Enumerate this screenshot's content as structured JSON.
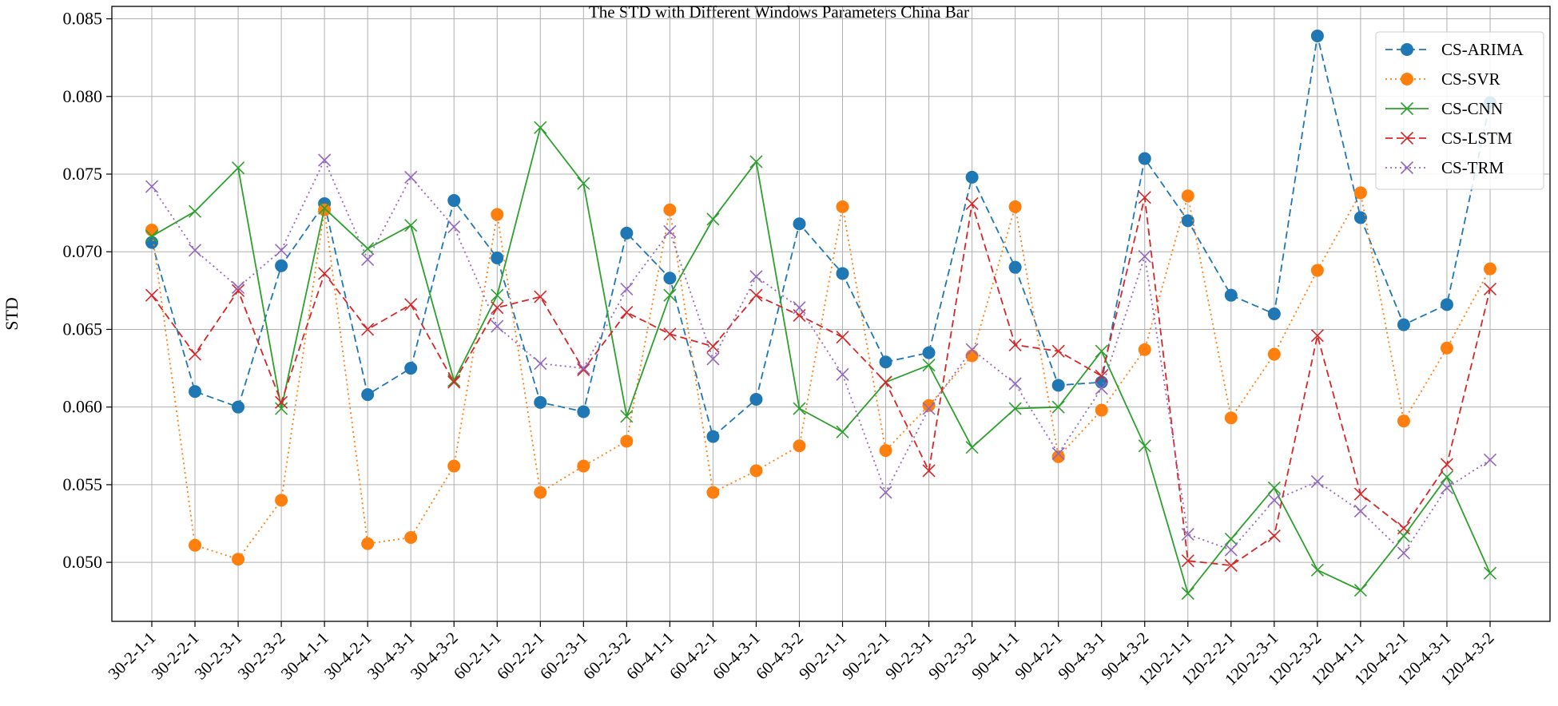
{
  "chart_data": {
    "type": "line",
    "title": "The STD with Different Windows Parameters China Bar",
    "xlabel": "",
    "ylabel": "STD",
    "ylim": [
      0.0462,
      0.0858
    ],
    "yticks": [
      0.05,
      0.055,
      0.06,
      0.065,
      0.07,
      0.075,
      0.08,
      0.085
    ],
    "ytick_labels": [
      "0.050",
      "0.055",
      "0.060",
      "0.065",
      "0.070",
      "0.075",
      "0.080",
      "0.085"
    ],
    "grid": true,
    "legend_position": "top-right",
    "categories": [
      "30-2-1-1",
      "30-2-2-1",
      "30-2-3-1",
      "30-2-3-2",
      "30-4-1-1",
      "30-4-2-1",
      "30-4-3-1",
      "30-4-3-2",
      "60-2-1-1",
      "60-2-2-1",
      "60-2-3-1",
      "60-2-3-2",
      "60-4-1-1",
      "60-4-2-1",
      "60-4-3-1",
      "60-4-3-2",
      "90-2-1-1",
      "90-2-2-1",
      "90-2-3-1",
      "90-2-3-2",
      "90-4-1-1",
      "90-4-2-1",
      "90-4-3-1",
      "90-4-3-2",
      "120-2-1-1",
      "120-2-2-1",
      "120-2-3-1",
      "120-2-3-2",
      "120-4-1-1",
      "120-4-2-1",
      "120-4-3-1",
      "120-4-3-2"
    ],
    "series": [
      {
        "name": "CS-ARIMA",
        "color": "#1f77b4",
        "dash": "dashed",
        "marker": "circle",
        "values": [
          0.0706,
          0.061,
          0.06,
          0.0691,
          0.0731,
          0.0608,
          0.0625,
          0.0733,
          0.0696,
          0.0603,
          0.0597,
          0.0712,
          0.0683,
          0.0581,
          0.0605,
          0.0718,
          0.0686,
          0.0629,
          0.0635,
          0.0748,
          0.069,
          0.0614,
          0.0616,
          0.076,
          0.072,
          0.0672,
          0.066,
          0.0839,
          0.0722,
          0.0653,
          0.0666,
          0.0796
        ]
      },
      {
        "name": "CS-SVR",
        "color": "#ff7f0e",
        "dash": "dotted",
        "marker": "circle",
        "values": [
          0.0714,
          0.0511,
          0.0502,
          0.054,
          0.0727,
          0.0512,
          0.0516,
          0.0562,
          0.0724,
          0.0545,
          0.0562,
          0.0578,
          0.0727,
          0.0545,
          0.0559,
          0.0575,
          0.0729,
          0.0572,
          0.0601,
          0.0633,
          0.0729,
          0.0568,
          0.0598,
          0.0637,
          0.0736,
          0.0593,
          0.0634,
          0.0688,
          0.0738,
          0.0591,
          0.0638,
          0.0689
        ]
      },
      {
        "name": "CS-CNN",
        "color": "#2ca02c",
        "dash": "solid",
        "marker": "x",
        "values": [
          0.071,
          0.0726,
          0.0754,
          0.0599,
          0.0728,
          0.0702,
          0.0717,
          0.0617,
          0.0672,
          0.078,
          0.0744,
          0.0594,
          0.0672,
          0.0721,
          0.0758,
          0.0599,
          0.0584,
          0.0616,
          0.0627,
          0.0574,
          0.0599,
          0.06,
          0.0636,
          0.0575,
          0.048,
          0.0515,
          0.0548,
          0.0495,
          0.0482,
          0.0517,
          0.0555,
          0.0493
        ]
      },
      {
        "name": "CS-LSTM",
        "color": "#d62728",
        "dash": "dashed",
        "marker": "x",
        "values": [
          0.0672,
          0.0634,
          0.0675,
          0.0603,
          0.0686,
          0.065,
          0.0666,
          0.0616,
          0.0664,
          0.0671,
          0.0624,
          0.0661,
          0.0647,
          0.0639,
          0.0672,
          0.0659,
          0.0645,
          0.0616,
          0.0559,
          0.0731,
          0.064,
          0.0636,
          0.062,
          0.0735,
          0.0501,
          0.0498,
          0.0517,
          0.0646,
          0.0544,
          0.0522,
          0.0563,
          0.0676
        ]
      },
      {
        "name": "CS-TRM",
        "color": "#9467bd",
        "dash": "dotted",
        "marker": "x",
        "values": [
          0.0742,
          0.0701,
          0.0677,
          0.0701,
          0.0759,
          0.0695,
          0.0748,
          0.0716,
          0.0652,
          0.0628,
          0.0625,
          0.0676,
          0.0713,
          0.0631,
          0.0684,
          0.0664,
          0.0621,
          0.0545,
          0.0599,
          0.0637,
          0.0615,
          0.057,
          0.0612,
          0.0697,
          0.0518,
          0.0508,
          0.054,
          0.0552,
          0.0533,
          0.0506,
          0.0548,
          0.0566
        ]
      }
    ]
  }
}
